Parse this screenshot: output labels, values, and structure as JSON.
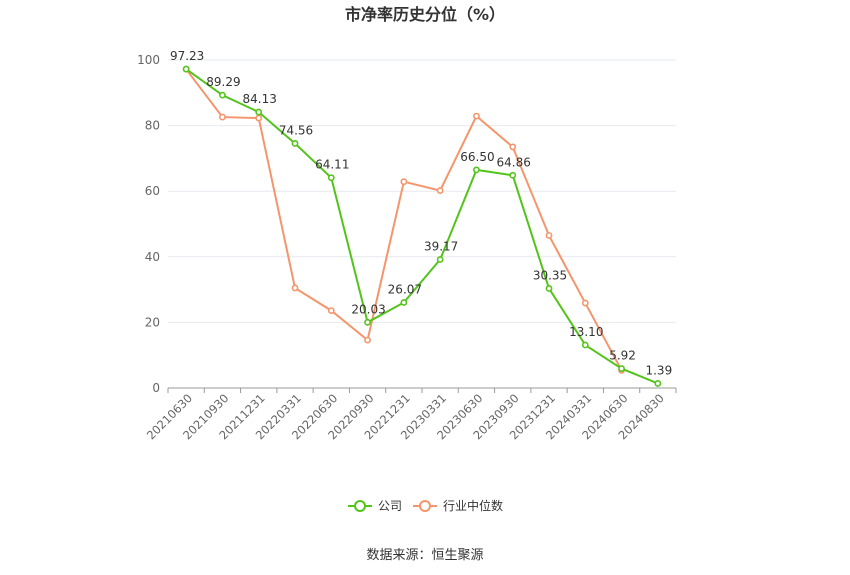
{
  "chart_data": {
    "type": "line",
    "title": "市净率历史分位（%）",
    "categories": [
      "20210630",
      "20210930",
      "20211231",
      "20220331",
      "20220630",
      "20220930",
      "20221231",
      "20230331",
      "20230630",
      "20230930",
      "20231231",
      "20240331",
      "20240630",
      "20240830"
    ],
    "series": [
      {
        "name": "公司",
        "color": "#52c41a",
        "values": [
          97.23,
          89.29,
          84.13,
          74.56,
          64.11,
          20.03,
          26.07,
          39.17,
          66.5,
          64.86,
          30.35,
          13.1,
          5.92,
          1.39
        ],
        "labels": [
          "97.23",
          "89.29",
          "84.13",
          "74.56",
          "64.11",
          "20.03",
          "26.07",
          "39.17",
          "66.50",
          "64.86",
          "30.35",
          "13.10",
          "5.92",
          "1.39"
        ]
      },
      {
        "name": "行业中位数",
        "color": "#f5956b",
        "values": [
          97.2,
          82.6,
          82.3,
          30.5,
          23.6,
          14.6,
          62.9,
          60.2,
          82.9,
          73.5,
          46.5,
          25.9,
          5.4,
          null
        ]
      }
    ],
    "ylim": [
      0,
      100
    ],
    "yticks": [
      0,
      20,
      40,
      60,
      80,
      100
    ],
    "grid": true,
    "legend_position": "bottom"
  },
  "source": "数据来源：恒生聚源"
}
